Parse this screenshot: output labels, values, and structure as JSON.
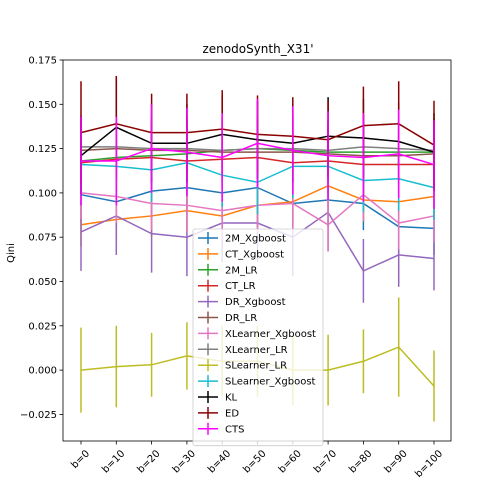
{
  "chart_data": {
    "type": "line",
    "title": "zenodoSynth_X31'",
    "xlabel": "",
    "ylabel": "Qini",
    "ylim": [
      -0.04,
      0.175
    ],
    "yticks": [
      -0.025,
      0.0,
      0.025,
      0.05,
      0.075,
      0.1,
      0.125,
      0.15,
      0.175
    ],
    "ytick_labels": [
      "−0.025",
      "0.000",
      "0.025",
      "0.050",
      "0.075",
      "0.100",
      "0.125",
      "0.150",
      "0.175"
    ],
    "categories": [
      "b=0",
      "b=10",
      "b=20",
      "b=30",
      "b=40",
      "b=50",
      "b=60",
      "b=70",
      "b=80",
      "b=90",
      "b=100"
    ],
    "legend_position": "lower-center",
    "series": [
      {
        "name": "2M_Xgboost",
        "color": "#1f77b4",
        "values": [
          0.099,
          0.095,
          0.101,
          0.103,
          0.1,
          0.103,
          0.094,
          0.096,
          0.094,
          0.081,
          0.08
        ],
        "err": [
          0.015,
          0.015,
          0.015,
          0.015,
          0.015,
          0.015,
          0.015,
          0.015,
          0.015,
          0.015,
          0.015
        ]
      },
      {
        "name": "CT_Xgboost",
        "color": "#ff7f0e",
        "values": [
          0.082,
          0.085,
          0.087,
          0.09,
          0.087,
          0.093,
          0.095,
          0.104,
          0.096,
          0.095,
          0.098
        ],
        "err": [
          0.012,
          0.012,
          0.012,
          0.012,
          0.012,
          0.012,
          0.012,
          0.012,
          0.012,
          0.012,
          0.012
        ]
      },
      {
        "name": "2M_LR",
        "color": "#2ca02c",
        "values": [
          0.118,
          0.12,
          0.121,
          0.122,
          0.124,
          0.125,
          0.124,
          0.123,
          0.123,
          0.123,
          0.123
        ],
        "err": [
          0.018,
          0.018,
          0.018,
          0.018,
          0.018,
          0.018,
          0.018,
          0.018,
          0.018,
          0.018,
          0.018
        ]
      },
      {
        "name": "CT_LR",
        "color": "#d62728",
        "values": [
          0.117,
          0.119,
          0.12,
          0.118,
          0.119,
          0.12,
          0.117,
          0.118,
          0.116,
          0.116,
          0.116
        ],
        "err": [
          0.018,
          0.018,
          0.018,
          0.018,
          0.018,
          0.018,
          0.018,
          0.018,
          0.018,
          0.018,
          0.018
        ]
      },
      {
        "name": "DR_Xgboost",
        "color": "#9467bd",
        "values": [
          0.078,
          0.087,
          0.077,
          0.075,
          0.083,
          0.083,
          0.075,
          0.089,
          0.056,
          0.065,
          0.063
        ],
        "err": [
          0.022,
          0.022,
          0.022,
          0.022,
          0.022,
          0.022,
          0.022,
          0.022,
          0.018,
          0.018,
          0.018
        ]
      },
      {
        "name": "DR_LR",
        "color": "#8c564b",
        "values": [
          0.124,
          0.125,
          0.124,
          0.124,
          0.123,
          0.123,
          0.123,
          0.122,
          0.121,
          0.121,
          0.122
        ],
        "err": [
          0.018,
          0.018,
          0.018,
          0.018,
          0.018,
          0.018,
          0.018,
          0.018,
          0.018,
          0.018,
          0.018
        ]
      },
      {
        "name": "XLearner_Xgboost",
        "color": "#e377c2",
        "values": [
          0.1,
          0.098,
          0.094,
          0.093,
          0.09,
          0.093,
          0.094,
          0.082,
          0.099,
          0.083,
          0.087
        ],
        "err": [
          0.015,
          0.015,
          0.015,
          0.015,
          0.015,
          0.015,
          0.015,
          0.015,
          0.015,
          0.015,
          0.015
        ]
      },
      {
        "name": "XLearner_LR",
        "color": "#7f7f7f",
        "values": [
          0.126,
          0.126,
          0.125,
          0.125,
          0.124,
          0.125,
          0.125,
          0.124,
          0.126,
          0.125,
          0.124
        ],
        "err": [
          0.018,
          0.018,
          0.018,
          0.018,
          0.018,
          0.018,
          0.018,
          0.018,
          0.018,
          0.018,
          0.018
        ]
      },
      {
        "name": "SLearner_LR",
        "color": "#bcbd22",
        "values": [
          0.0,
          0.002,
          0.003,
          0.008,
          0.005,
          0.005,
          0.0,
          0.0,
          0.005,
          0.013,
          -0.009
        ],
        "err": [
          0.024,
          0.023,
          0.018,
          0.019,
          0.02,
          0.02,
          0.02,
          0.02,
          0.018,
          0.028,
          0.02
        ]
      },
      {
        "name": "SLearner_Xgboost",
        "color": "#17becf",
        "values": [
          0.116,
          0.115,
          0.113,
          0.117,
          0.11,
          0.106,
          0.115,
          0.115,
          0.107,
          0.108,
          0.103
        ],
        "err": [
          0.018,
          0.018,
          0.018,
          0.018,
          0.018,
          0.018,
          0.018,
          0.018,
          0.018,
          0.018,
          0.018
        ]
      },
      {
        "name": "KL",
        "color": "#000000",
        "values": [
          0.121,
          0.137,
          0.128,
          0.128,
          0.133,
          0.13,
          0.128,
          0.132,
          0.131,
          0.129,
          0.123
        ],
        "err": [
          0.022,
          0.028,
          0.022,
          0.022,
          0.022,
          0.022,
          0.022,
          0.022,
          0.022,
          0.022,
          0.022
        ]
      },
      {
        "name": "ED",
        "color": "#8b0000",
        "values": [
          0.134,
          0.139,
          0.134,
          0.134,
          0.136,
          0.133,
          0.132,
          0.13,
          0.138,
          0.139,
          0.127
        ],
        "err": [
          0.029,
          0.027,
          0.022,
          0.022,
          0.022,
          0.022,
          0.022,
          0.022,
          0.022,
          0.024,
          0.025
        ]
      },
      {
        "name": "CTS",
        "color": "#ff00ff",
        "values": [
          0.118,
          0.118,
          0.125,
          0.123,
          0.12,
          0.128,
          0.124,
          0.121,
          0.12,
          0.122,
          0.116
        ],
        "err": [
          0.025,
          0.025,
          0.025,
          0.025,
          0.025,
          0.025,
          0.025,
          0.025,
          0.025,
          0.025,
          0.025
        ]
      }
    ]
  }
}
